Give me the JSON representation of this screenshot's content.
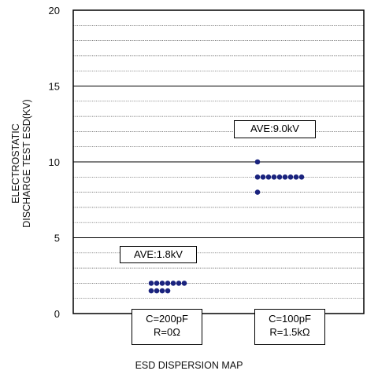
{
  "chart_data": {
    "type": "scatter",
    "title": "",
    "xlabel": "ESD DISPERSION MAP",
    "ylabel_lines": [
      "ELECTROSTATIC",
      "DISCHARGE TEST ESD(KV)"
    ],
    "ylim": [
      0,
      20
    ],
    "yticks": [
      0,
      5,
      10,
      15,
      20
    ],
    "grid": "horizontal",
    "grid_step": 1,
    "categories": [
      {
        "lines": [
          "C=200pF",
          "R=0Ω"
        ]
      },
      {
        "lines": [
          "C=100pF",
          "R=1.5kΩ"
        ]
      }
    ],
    "series": [
      {
        "category_index": 0,
        "annotation": "AVE:1.8kV",
        "levels": [
          {
            "y": 2.0,
            "count": 7
          },
          {
            "y": 1.5,
            "count": 4
          }
        ]
      },
      {
        "category_index": 1,
        "annotation": "AVE:9.0kV",
        "levels": [
          {
            "y": 10.0,
            "count": 1
          },
          {
            "y": 9.0,
            "count": 9
          },
          {
            "y": 8.0,
            "count": 1
          }
        ]
      }
    ],
    "marker_color": "#1a237e"
  }
}
